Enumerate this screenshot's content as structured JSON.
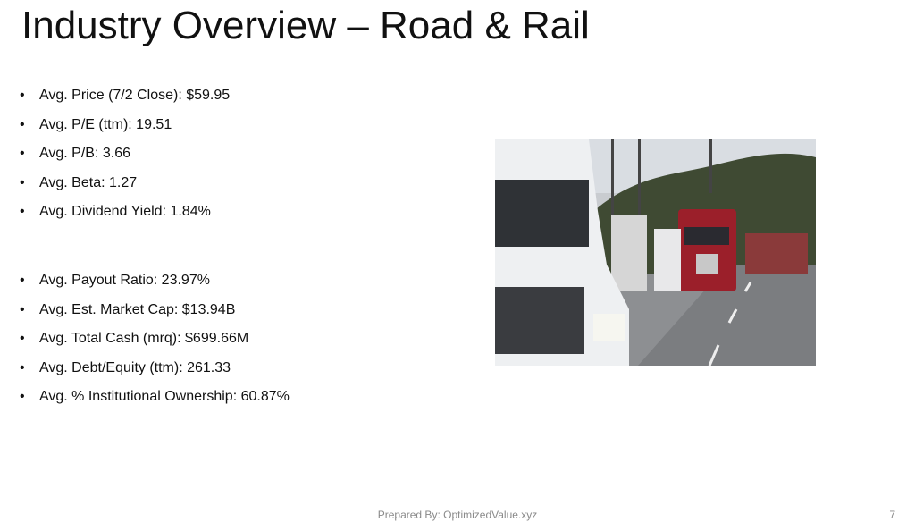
{
  "header": {
    "title": "Industry Overview – Road & Rail"
  },
  "bullets": {
    "group_1": [
      "Avg. Price (7/2 Close): $59.95",
      "Avg. P/E (ttm): 19.51",
      "Avg. P/B: 3.66",
      "Avg. Beta: 1.27",
      "Avg. Dividend Yield: 1.84%"
    ],
    "group_2": [
      "Avg. Payout Ratio: 23.97%",
      "Avg. Est. Market Cap: $13.94B",
      "Avg. Total Cash (mrq): $699.66M",
      "Avg. Debt/Equity (ttm): 261.33",
      "Avg. % Institutional Ownership: 60.87%"
    ]
  },
  "footer": {
    "prepared_by": "Prepared By: OptimizedValue.xyz",
    "page_number": "7"
  }
}
